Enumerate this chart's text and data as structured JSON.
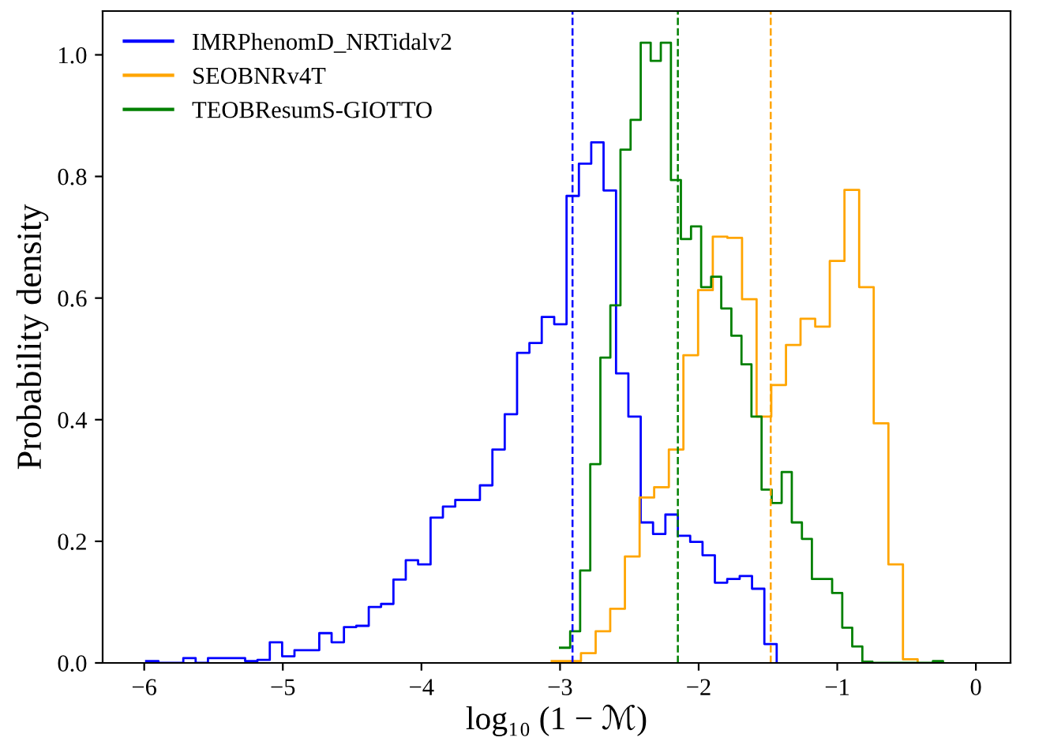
{
  "chart_data": {
    "type": "step",
    "xlabel": "log₁₀ (1 − ℳ)",
    "ylabel": "Probability density",
    "xlim": [
      -6.3,
      0.25
    ],
    "ylim": [
      0,
      1.072
    ],
    "xticks": [
      {
        "value": -6,
        "label": "−6"
      },
      {
        "value": -5,
        "label": "−5"
      },
      {
        "value": -4,
        "label": "−4"
      },
      {
        "value": -3,
        "label": "−3"
      },
      {
        "value": -2,
        "label": "−2"
      },
      {
        "value": -1,
        "label": "−1"
      },
      0
    ],
    "yticks": [
      {
        "value": 0,
        "label": "0.0"
      },
      {
        "value": 0.2,
        "label": "0.2"
      },
      {
        "value": 0.4,
        "label": "0.4"
      },
      {
        "value": 0.6,
        "label": "0.6"
      },
      {
        "value": 0.8,
        "label": "0.8"
      },
      {
        "value": 1,
        "label": "1.0"
      }
    ],
    "grid": false,
    "legend": "top left",
    "line_style": "solid",
    "series": [
      {
        "name": "IMRPhenomD_NRTidalv2",
        "color": "#0000ff",
        "x": [
          -5.986,
          -5.897,
          -5.808,
          -5.718,
          -5.629,
          -5.54,
          -5.451,
          -5.362,
          -5.272,
          -5.183,
          -5.094,
          -5.005,
          -4.916,
          -4.826,
          -4.737,
          -4.648,
          -4.559,
          -4.47,
          -4.38,
          -4.291,
          -4.202,
          -4.113,
          -4.024,
          -3.934,
          -3.845,
          -3.756,
          -3.667,
          -3.578,
          -3.488,
          -3.399,
          -3.31,
          -3.221,
          -3.132,
          -3.042,
          -2.953,
          -2.864,
          -2.775,
          -2.686,
          -2.596,
          -2.507,
          -2.418,
          -2.329,
          -2.24,
          -2.15,
          -2.061,
          -1.972,
          -1.883,
          -1.794,
          -1.704,
          -1.615,
          -1.526,
          -1.437
        ],
        "values": [
          0.003,
          0,
          0,
          0.008,
          0,
          0.008,
          0.008,
          0.008,
          0.003,
          0.005,
          0.034,
          0.011,
          0.021,
          0.021,
          0.049,
          0.034,
          0.059,
          0.061,
          0.092,
          0.097,
          0.137,
          0.169,
          0.162,
          0.239,
          0.257,
          0.268,
          0.268,
          0.292,
          0.351,
          0.409,
          0.51,
          0.526,
          0.569,
          0.557,
          0.768,
          0.821,
          0.856,
          0.777,
          0.476,
          0.405,
          0.231,
          0.212,
          0.244,
          0.209,
          0.199,
          0.177,
          0.132,
          0.138,
          0.143,
          0.122,
          0.031,
          0
        ]
      },
      {
        "name": "SEOBNRv4T",
        "color": "#ffa500",
        "x": [
          -3.06,
          -2.954,
          -2.849,
          -2.743,
          -2.638,
          -2.532,
          -2.426,
          -2.321,
          -2.215,
          -2.11,
          -2.004,
          -1.898,
          -1.793,
          -1.687,
          -1.582,
          -1.476,
          -1.37,
          -1.265,
          -1.159,
          -1.054,
          -0.948,
          -0.842,
          -0.737,
          -0.631,
          -0.526,
          -0.42
        ],
        "values": [
          0.003,
          0.003,
          0.016,
          0.052,
          0.089,
          0.175,
          0.272,
          0.289,
          0.351,
          0.506,
          0.613,
          0.701,
          0.699,
          0.598,
          0.405,
          0.457,
          0.523,
          0.566,
          0.553,
          0.661,
          0.778,
          0.618,
          0.394,
          0.162,
          0.006,
          0
        ]
      },
      {
        "name": "TEOBResumS-GIOTTO",
        "color": "#008000",
        "x": [
          -3.0,
          -2.927,
          -2.855,
          -2.782,
          -2.709,
          -2.637,
          -2.564,
          -2.491,
          -2.418,
          -2.346,
          -2.273,
          -2.2,
          -2.128,
          -2.055,
          -1.982,
          -1.91,
          -1.837,
          -1.764,
          -1.691,
          -1.619,
          -1.546,
          -1.473,
          -1.401,
          -1.328,
          -1.255,
          -1.183,
          -1.11,
          -1.037,
          -0.964,
          -0.892,
          -0.819,
          -0.746,
          -0.674,
          -0.601,
          -0.528,
          -0.456,
          -0.383,
          -0.31,
          -0.237
        ],
        "values": [
          0.025,
          0.052,
          0.152,
          0.327,
          0.502,
          0.588,
          0.844,
          0.893,
          1.02,
          0.99,
          1.02,
          0.794,
          0.697,
          0.718,
          0.618,
          0.635,
          0.583,
          0.538,
          0.491,
          0.405,
          0.285,
          0.263,
          0.314,
          0.231,
          0.204,
          0.138,
          0.138,
          0.115,
          0.058,
          0.027,
          0.002,
          0,
          0,
          0,
          0,
          0,
          0,
          0.003,
          0
        ]
      }
    ],
    "ref_lines": [
      {
        "axis": "x",
        "value": -2.91,
        "color": "#0000ff",
        "line_style": "dashed"
      },
      {
        "axis": "x",
        "value": -2.15,
        "color": "#008000",
        "line_style": "dashed"
      },
      {
        "axis": "x",
        "value": -1.48,
        "color": "#ffa500",
        "line_style": "dashed"
      }
    ]
  }
}
